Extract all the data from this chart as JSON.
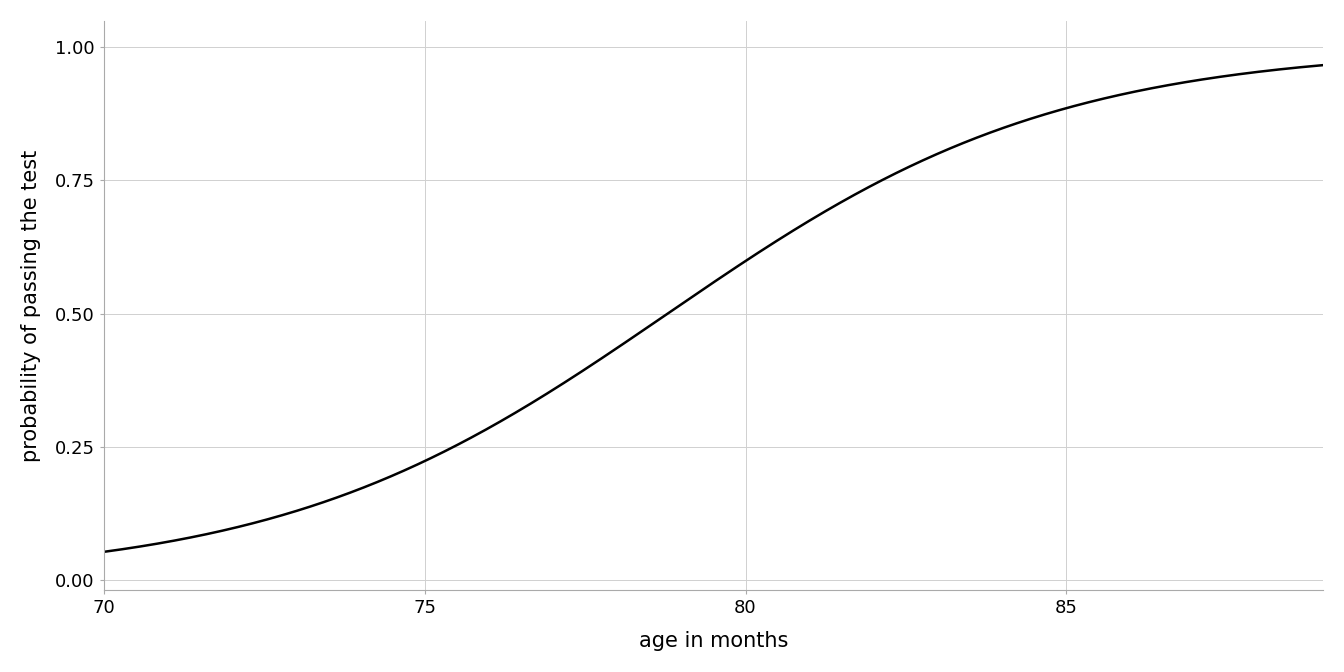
{
  "x_min": 70,
  "x_max": 89,
  "y_min": -0.02,
  "y_max": 1.05,
  "x_ticks": [
    70,
    75,
    80,
    85
  ],
  "y_ticks": [
    0.0,
    0.25,
    0.5,
    0.75,
    1.0
  ],
  "xlabel": "age in months",
  "ylabel": "probability of passing the test",
  "logistic_intercept": -26.0,
  "logistic_slope": 0.33,
  "line_color": "#000000",
  "line_width": 1.8,
  "background_color": "#ffffff",
  "grid_color": "#d0d0d0",
  "grid_linewidth": 0.7,
  "tick_label_fontsize": 13,
  "axis_label_fontsize": 15,
  "spine_color": "#aaaaaa"
}
